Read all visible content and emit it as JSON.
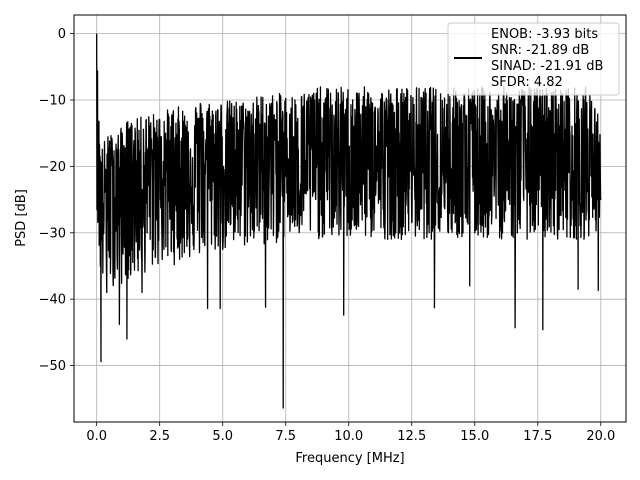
{
  "chart_data": {
    "type": "line",
    "xlabel": "Frequency [MHz]",
    "ylabel": "PSD [dB]",
    "xlim": [
      -0.9,
      21.0
    ],
    "ylim": [
      -58.5,
      2.8
    ],
    "x_ticks": [
      0.0,
      2.5,
      5.0,
      7.5,
      10.0,
      12.5,
      15.0,
      17.5,
      20.0
    ],
    "x_tick_labels": [
      "0.0",
      "2.5",
      "5.0",
      "7.5",
      "10.0",
      "12.5",
      "15.0",
      "17.5",
      "20.0"
    ],
    "y_ticks": [
      0,
      -10,
      -20,
      -30,
      -40,
      -50
    ],
    "y_tick_labels": [
      "0",
      "−10",
      "−20",
      "−30",
      "−40",
      "−50"
    ],
    "grid": true,
    "legend_position": "top-right",
    "line_color": "#000000",
    "series": [
      {
        "legend_lines": [
          "ENOB: -3.93 bits",
          "SNR: -21.89 dB",
          "SINAD: -21.91 dB",
          "SFDR: 4.82"
        ],
        "x": [
          0.0,
          0.05,
          0.1,
          0.15,
          0.2,
          0.3,
          0.5,
          0.8,
          1.0,
          1.2,
          1.5,
          2.0,
          2.5,
          3.0,
          3.5,
          4.0,
          4.5,
          5.0,
          5.5,
          6.0,
          6.5,
          7.0,
          7.4,
          7.5,
          8.0,
          8.5,
          9.0,
          9.5,
          10.0,
          10.5,
          11.0,
          11.5,
          12.0,
          12.5,
          13.0,
          13.5,
          14.0,
          14.5,
          15.0,
          15.5,
          16.0,
          16.5,
          17.0,
          17.5,
          18.0,
          18.5,
          19.0,
          19.5,
          20.0
        ],
        "center": [
          -25,
          -12,
          -19,
          -23,
          -24,
          -24,
          -23,
          -22,
          -22,
          -22,
          -21,
          -21,
          -20,
          -20,
          -20,
          -19,
          -19,
          -19,
          -19,
          -19,
          -19,
          -19,
          -19,
          -19,
          -19,
          -19,
          -19,
          -19,
          -19,
          -19,
          -19,
          -19,
          -19,
          -19,
          -19,
          -19,
          -19,
          -19,
          -19,
          -19,
          -19,
          -19,
          -19,
          -19,
          -19,
          -19,
          -19,
          -19,
          -20
        ],
        "upper": [
          0,
          -7,
          -14,
          -16,
          -17,
          -16,
          -15,
          -15,
          -14,
          -13,
          -13,
          -12,
          -12,
          -11,
          -11,
          -10,
          -10,
          -10,
          -10,
          -10,
          -9,
          -9,
          -9,
          -9,
          -9,
          -8,
          -8,
          -8,
          -8,
          -8,
          -8,
          -8,
          -8,
          -8,
          -8,
          -8,
          -8,
          -8,
          -8,
          -8,
          -8,
          -8,
          -8,
          -8,
          -8,
          -8,
          -8,
          -8,
          -13
        ],
        "lower": [
          -25,
          -32,
          -34,
          -37,
          -38,
          -38,
          -38,
          -38,
          -38,
          -37,
          -37,
          -36,
          -35,
          -35,
          -34,
          -34,
          -33,
          -33,
          -33,
          -32,
          -32,
          -32,
          -31,
          -31,
          -31,
          -31,
          -31,
          -31,
          -31,
          -31,
          -31,
          -31,
          -31,
          -31,
          -31,
          -31,
          -31,
          -31,
          -31,
          -31,
          -31,
          -31,
          -31,
          -31,
          -31,
          -31,
          -31,
          -31,
          -29
        ],
        "dips": [
          {
            "x": 0.17,
            "y": -49.4
          },
          {
            "x": 0.4,
            "y": -39.0
          },
          {
            "x": 0.9,
            "y": -43.8
          },
          {
            "x": 1.2,
            "y": -46.0
          },
          {
            "x": 1.8,
            "y": -39.0
          },
          {
            "x": 4.4,
            "y": -41.4
          },
          {
            "x": 4.9,
            "y": -41.4
          },
          {
            "x": 6.7,
            "y": -41.2
          },
          {
            "x": 7.4,
            "y": -56.4
          },
          {
            "x": 9.8,
            "y": -42.4
          },
          {
            "x": 13.4,
            "y": -41.3
          },
          {
            "x": 14.8,
            "y": -38.0
          },
          {
            "x": 16.6,
            "y": -44.3
          },
          {
            "x": 17.7,
            "y": -44.6
          },
          {
            "x": 19.1,
            "y": -38.5
          },
          {
            "x": 19.9,
            "y": -38.7
          }
        ],
        "peak": {
          "x": 0.0,
          "y": 0.0
        }
      }
    ]
  }
}
